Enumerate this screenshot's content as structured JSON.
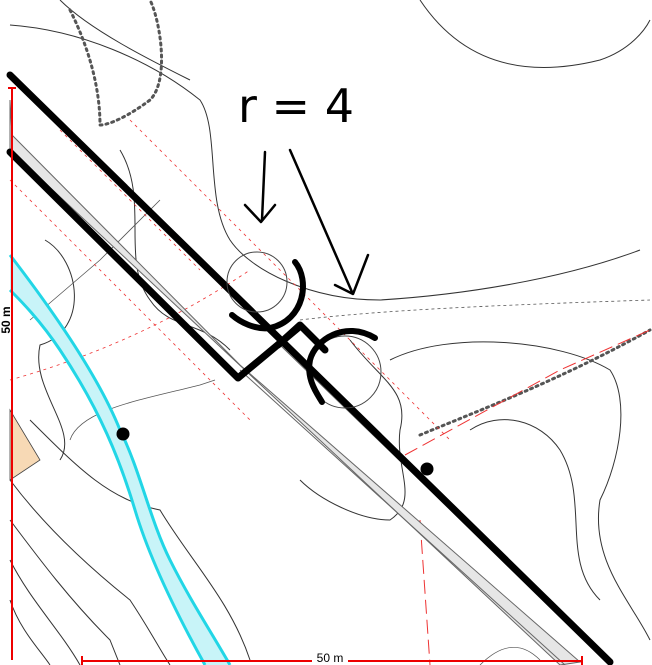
{
  "annotation": "r = 4",
  "scale_vertical": "50 m",
  "scale_horizontal": "50 m"
}
